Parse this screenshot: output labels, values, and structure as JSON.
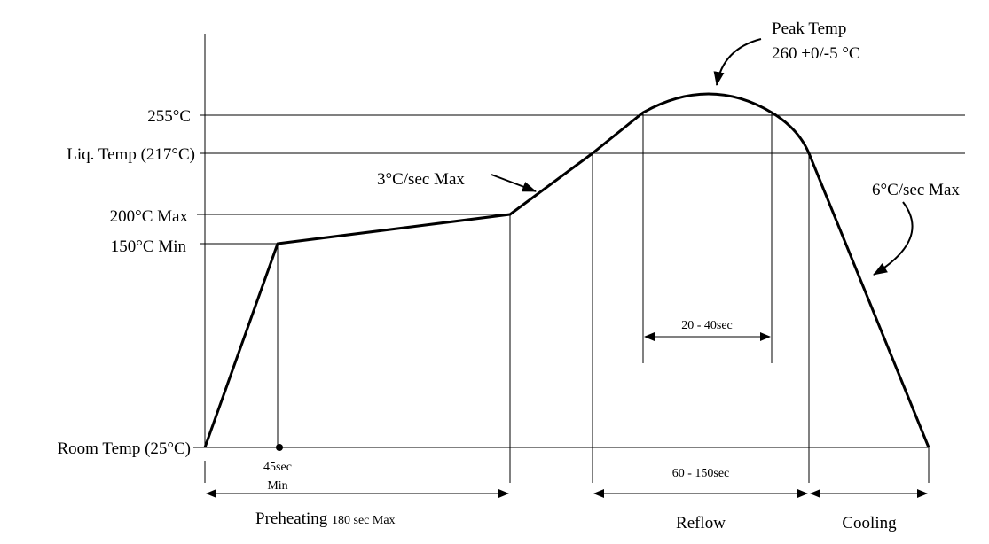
{
  "diagram": {
    "peak": {
      "title": "Peak Temp",
      "value": "260 +0/-5 °C"
    },
    "y_labels": {
      "t255": "255°C",
      "liquidus": "Liq. Temp (217°C)",
      "max200": "200°C Max",
      "min150": "150°C Min",
      "room": "Room Temp (25°C)"
    },
    "ramp_up": "3°C/sec Max",
    "ramp_down": "6°C/sec Max",
    "above_255": "20 - 40sec",
    "dwell_min": {
      "time": "45sec",
      "label": "Min"
    },
    "above_liquidus": "60 - 150sec",
    "phases": {
      "preheating": "Preheating",
      "preheating_limit": "180 sec Max",
      "reflow": "Reflow",
      "cooling": "Cooling"
    }
  }
}
